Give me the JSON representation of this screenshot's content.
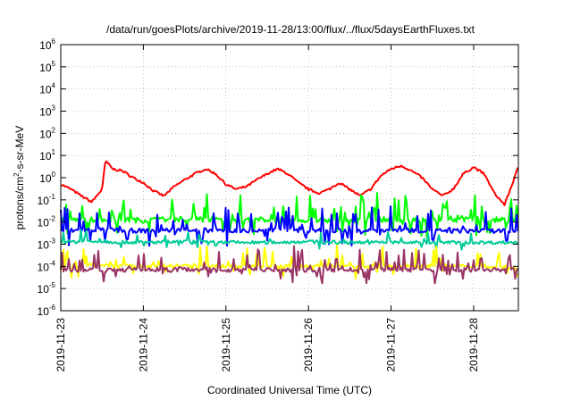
{
  "chart_data": {
    "type": "line",
    "title": "/data/run/goesPlots/archive/2019-11-28/13:00/flux/../flux/5daysEarthFluxes.txt",
    "xlabel": "Coordinated Universal Time (UTC)",
    "ylabel": {
      "base": "protons/cm",
      "sup": "2",
      "rest": "-s-sr-MeV"
    },
    "y_scale": "log",
    "y_ticks": [
      {
        "base": "10",
        "exp": "-6"
      },
      {
        "base": "10",
        "exp": "-5"
      },
      {
        "base": "10",
        "exp": "-4"
      },
      {
        "base": "10",
        "exp": "-3"
      },
      {
        "base": "10",
        "exp": "-2"
      },
      {
        "base": "10",
        "exp": "-1"
      },
      {
        "base": "10",
        "exp": "0"
      },
      {
        "base": "10",
        "exp": "1"
      },
      {
        "base": "10",
        "exp": "2"
      },
      {
        "base": "10",
        "exp": "3"
      },
      {
        "base": "10",
        "exp": "4"
      },
      {
        "base": "10",
        "exp": "5"
      },
      {
        "base": "10",
        "exp": "6"
      }
    ],
    "ylim": [
      1e-06,
      1000000.0
    ],
    "x_ticks": [
      "2019-11-23",
      "2019-11-24",
      "2019-11-25",
      "2019-11-26",
      "2019-11-27",
      "2019-11-28"
    ],
    "xlim": [
      "2019-11-23T00:00",
      "2019-11-28T13:00"
    ],
    "grid": true,
    "series": [
      {
        "color": "#ff0000",
        "x": [
          "2019-11-23T00:00",
          "2019-11-23T03:00",
          "2019-11-23T06:00",
          "2019-11-23T09:00",
          "2019-11-23T12:00",
          "2019-11-23T13:00",
          "2019-11-23T15:00",
          "2019-11-23T18:00",
          "2019-11-23T21:00",
          "2019-11-24T00:00",
          "2019-11-24T03:00",
          "2019-11-24T06:00",
          "2019-11-24T09:00",
          "2019-11-24T12:00",
          "2019-11-24T15:00",
          "2019-11-24T18:00",
          "2019-11-24T21:00",
          "2019-11-25T00:00",
          "2019-11-25T03:00",
          "2019-11-25T06:00",
          "2019-11-25T09:00",
          "2019-11-25T12:00",
          "2019-11-25T15:00",
          "2019-11-25T18:00",
          "2019-11-25T21:00",
          "2019-11-26T00:00",
          "2019-11-26T03:00",
          "2019-11-26T06:00",
          "2019-11-26T09:00",
          "2019-11-26T12:00",
          "2019-11-26T15:00",
          "2019-11-26T18:00",
          "2019-11-26T21:00",
          "2019-11-27T00:00",
          "2019-11-27T03:00",
          "2019-11-27T06:00",
          "2019-11-27T09:00",
          "2019-11-27T12:00",
          "2019-11-27T15:00",
          "2019-11-27T18:00",
          "2019-11-27T21:00",
          "2019-11-28T00:00",
          "2019-11-28T03:00",
          "2019-11-28T06:00",
          "2019-11-28T09:00",
          "2019-11-28T13:00"
        ],
        "values": [
          0.5,
          0.3,
          0.15,
          0.08,
          0.3,
          6.0,
          2.5,
          2.0,
          1.0,
          0.6,
          0.25,
          0.15,
          0.4,
          0.8,
          1.5,
          2.5,
          1.5,
          0.5,
          0.3,
          0.4,
          0.8,
          1.5,
          2.5,
          1.5,
          0.6,
          0.3,
          0.2,
          0.3,
          0.6,
          0.3,
          0.15,
          0.3,
          1.2,
          2.5,
          3.5,
          2.0,
          1.0,
          0.3,
          0.15,
          0.3,
          1.5,
          3.0,
          1.5,
          0.2,
          0.06,
          3.0
        ]
      },
      {
        "color": "#00ff00",
        "x": [
          "2019-11-23T00:00",
          "2019-11-23T12:00",
          "2019-11-24T00:00",
          "2019-11-24T12:00",
          "2019-11-25T00:00",
          "2019-11-25T12:00",
          "2019-11-26T00:00",
          "2019-11-26T12:00",
          "2019-11-27T00:00",
          "2019-11-27T12:00",
          "2019-11-28T00:00",
          "2019-11-28T13:00"
        ],
        "values": [
          0.012,
          0.013,
          0.012,
          0.014,
          0.012,
          0.013,
          0.012,
          0.012,
          0.013,
          0.012,
          0.013,
          0.012
        ]
      },
      {
        "color": "#0000ff",
        "x": [
          "2019-11-23T00:00",
          "2019-11-23T12:00",
          "2019-11-24T00:00",
          "2019-11-24T12:00",
          "2019-11-25T00:00",
          "2019-11-25T12:00",
          "2019-11-26T00:00",
          "2019-11-26T12:00",
          "2019-11-27T00:00",
          "2019-11-27T12:00",
          "2019-11-28T00:00",
          "2019-11-28T13:00"
        ],
        "values": [
          0.004,
          0.0045,
          0.004,
          0.0045,
          0.004,
          0.004,
          0.0042,
          0.004,
          0.0045,
          0.004,
          0.004,
          0.004
        ]
      },
      {
        "color": "#00cc99",
        "x": [
          "2019-11-23T00:00",
          "2019-11-23T12:00",
          "2019-11-24T00:00",
          "2019-11-24T12:00",
          "2019-11-25T00:00",
          "2019-11-25T12:00",
          "2019-11-26T00:00",
          "2019-11-26T12:00",
          "2019-11-27T00:00",
          "2019-11-27T12:00",
          "2019-11-28T00:00",
          "2019-11-28T13:00"
        ],
        "values": [
          0.0013,
          0.0013,
          0.0012,
          0.0013,
          0.0012,
          0.0012,
          0.0013,
          0.0012,
          0.0012,
          0.0012,
          0.0012,
          0.0012
        ]
      },
      {
        "color": "#ffff00",
        "x": [
          "2019-11-23T00:00",
          "2019-11-23T12:00",
          "2019-11-24T00:00",
          "2019-11-24T12:00",
          "2019-11-25T00:00",
          "2019-11-25T12:00",
          "2019-11-26T00:00",
          "2019-11-26T12:00",
          "2019-11-27T00:00",
          "2019-11-27T12:00",
          "2019-11-28T00:00",
          "2019-11-28T13:00"
        ],
        "values": [
          0.0001,
          0.00012,
          0.0001,
          0.00011,
          0.0001,
          0.0001,
          0.00011,
          0.0001,
          0.0001,
          0.00011,
          0.0001,
          0.0001
        ]
      },
      {
        "color": "#993366",
        "x": [
          "2019-11-23T00:00",
          "2019-11-23T12:00",
          "2019-11-24T00:00",
          "2019-11-24T12:00",
          "2019-11-25T00:00",
          "2019-11-25T12:00",
          "2019-11-26T00:00",
          "2019-11-26T12:00",
          "2019-11-27T00:00",
          "2019-11-27T12:00",
          "2019-11-28T00:00",
          "2019-11-28T13:00"
        ],
        "values": [
          7e-05,
          7e-05,
          7e-05,
          7.5e-05,
          7e-05,
          7e-05,
          7e-05,
          7e-05,
          7e-05,
          7e-05,
          7e-05,
          7e-05
        ]
      }
    ]
  }
}
